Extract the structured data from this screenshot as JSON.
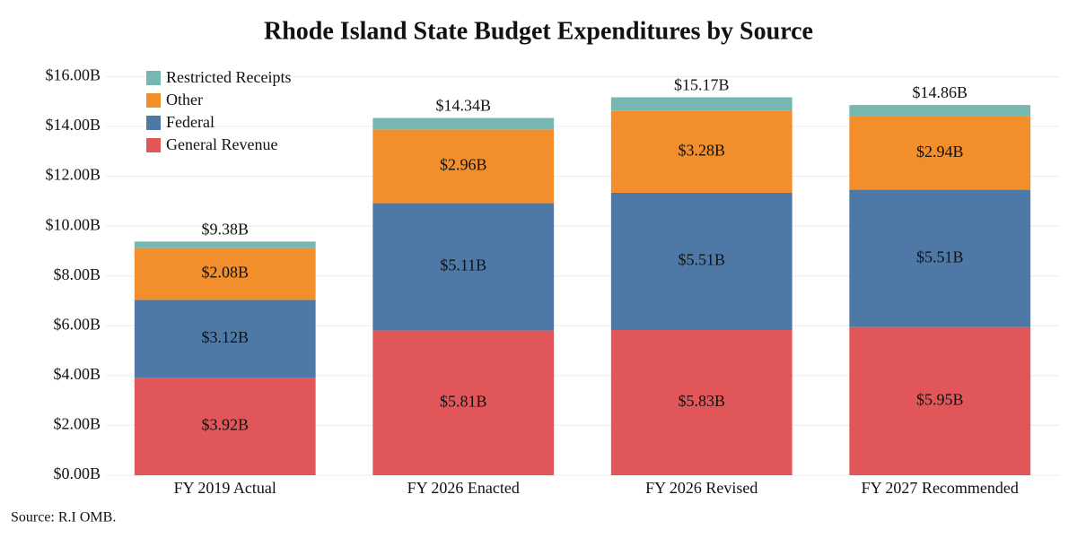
{
  "chart_data": {
    "type": "stacked_bar",
    "title": "Rhode Island State Budget Expenditures by Source",
    "source": "Source: R.I OMB.",
    "categories": [
      "FY 2019 Actual",
      "FY 2026 Enacted",
      "FY 2026 Revised",
      "FY 2027 Recommended"
    ],
    "series": [
      {
        "name": "General Revenue",
        "color": "#e15759",
        "values": [
          3.92,
          5.81,
          5.83,
          5.95
        ],
        "value_labels": [
          "$3.92B",
          "$5.81B",
          "$5.83B",
          "$5.95B"
        ]
      },
      {
        "name": "Federal",
        "color": "#4e79a7",
        "values": [
          3.12,
          5.11,
          5.51,
          5.51
        ],
        "value_labels": [
          "$3.12B",
          "$5.11B",
          "$5.51B",
          "$5.51B"
        ]
      },
      {
        "name": "Other",
        "color": "#f28e2b",
        "values": [
          2.08,
          2.96,
          3.28,
          2.94
        ],
        "value_labels": [
          "$2.08B",
          "$2.96B",
          "$3.28B",
          "$2.94B"
        ]
      },
      {
        "name": "Restricted Receipts",
        "color": "#76b7b2",
        "values": [
          0.26,
          0.46,
          0.55,
          0.46
        ]
      }
    ],
    "totals": {
      "values": [
        9.38,
        14.34,
        15.17,
        14.86
      ],
      "value_labels": [
        "$9.38B",
        "$14.34B",
        "$15.17B",
        "$14.86B"
      ]
    },
    "ylim": [
      0,
      16.7
    ],
    "yticks": [
      {
        "value": 0,
        "label": "$0.00B"
      },
      {
        "value": 2,
        "label": "$2.00B"
      },
      {
        "value": 4,
        "label": "$4.00B"
      },
      {
        "value": 6,
        "label": "$6.00B"
      },
      {
        "value": 8,
        "label": "$8.00B"
      },
      {
        "value": 10,
        "label": "$10.00B"
      },
      {
        "value": 12,
        "label": "$12.00B"
      },
      {
        "value": 14,
        "label": "$14.00B"
      },
      {
        "value": 16,
        "label": "$16.00B"
      }
    ],
    "grid": true,
    "legend": "top-left"
  }
}
